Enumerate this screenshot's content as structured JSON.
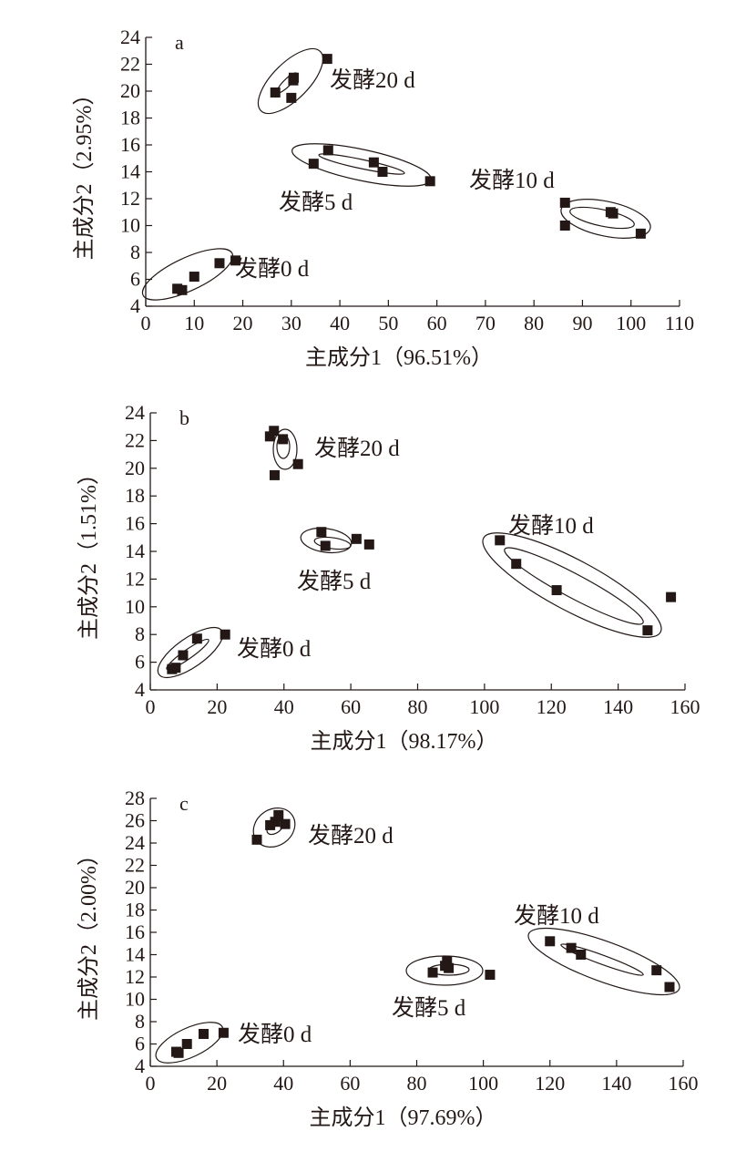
{
  "chart_data": [
    {
      "type": "scatter",
      "panel_label": "a",
      "xlabel": "主成分1（96.51%）",
      "ylabel": "主成分2（2.95%）",
      "xlim": [
        0,
        110
      ],
      "ylim": [
        4,
        24
      ],
      "xticks": [
        0,
        10,
        20,
        30,
        40,
        50,
        60,
        70,
        80,
        90,
        100,
        110
      ],
      "yticks": [
        4,
        6,
        8,
        10,
        12,
        14,
        16,
        18,
        20,
        22,
        24
      ],
      "groups": [
        {
          "name": "发酵0 d",
          "points": [
            [
              6.5,
              5.3
            ],
            [
              7.5,
              5.2
            ],
            [
              10.0,
              6.2
            ],
            [
              15.2,
              7.2
            ],
            [
              18.5,
              7.4
            ]
          ]
        },
        {
          "name": "发酵5 d",
          "points": [
            [
              34.6,
              14.6
            ],
            [
              37.6,
              15.6
            ],
            [
              47.0,
              14.7
            ],
            [
              48.8,
              14.0
            ],
            [
              58.6,
              13.3
            ]
          ]
        },
        {
          "name": "发酵10 d",
          "points": [
            [
              86.4,
              11.7
            ],
            [
              86.4,
              10.0
            ],
            [
              95.8,
              11.0
            ],
            [
              96.3,
              10.9
            ],
            [
              102.0,
              9.4
            ]
          ]
        },
        {
          "name": "发酵20 d",
          "points": [
            [
              26.7,
              19.9
            ],
            [
              30.0,
              19.5
            ],
            [
              30.4,
              20.8
            ],
            [
              30.5,
              21.0
            ],
            [
              37.4,
              22.4
            ]
          ]
        }
      ]
    },
    {
      "type": "scatter",
      "panel_label": "b",
      "xlabel": "主成分1（98.17%）",
      "ylabel": "主成分2（1.51%）",
      "xlim": [
        0,
        160
      ],
      "ylim": [
        4,
        24
      ],
      "xticks": [
        0,
        20,
        40,
        60,
        80,
        100,
        120,
        140,
        160
      ],
      "yticks": [
        4,
        6,
        8,
        10,
        12,
        14,
        16,
        18,
        20,
        22,
        24
      ],
      "groups": [
        {
          "name": "发酵0 d",
          "points": [
            [
              6.5,
              5.5
            ],
            [
              7.6,
              5.6
            ],
            [
              9.8,
              6.5
            ],
            [
              14.0,
              7.7
            ],
            [
              22.4,
              8.0
            ]
          ]
        },
        {
          "name": "发酵5 d",
          "points": [
            [
              51.2,
              15.4
            ],
            [
              52.4,
              14.4
            ],
            [
              61.7,
              14.9
            ],
            [
              65.5,
              14.5
            ]
          ]
        },
        {
          "name": "发酵10 d",
          "points": [
            [
              104.6,
              14.8
            ],
            [
              109.5,
              13.1
            ],
            [
              121.6,
              11.2
            ],
            [
              148.8,
              8.3
            ],
            [
              155.8,
              10.7
            ]
          ]
        },
        {
          "name": "发酵20 d",
          "points": [
            [
              35.8,
              22.3
            ],
            [
              37.0,
              22.7
            ],
            [
              39.7,
              22.1
            ],
            [
              37.2,
              19.5
            ],
            [
              44.2,
              20.3
            ]
          ]
        }
      ]
    },
    {
      "type": "scatter",
      "panel_label": "c",
      "xlabel": "主成分1（97.69%）",
      "ylabel": "主成分2（2.00%）",
      "xlim": [
        0,
        160
      ],
      "ylim": [
        4,
        28
      ],
      "xticks": [
        0,
        20,
        40,
        60,
        80,
        100,
        120,
        140,
        160
      ],
      "yticks": [
        4,
        6,
        8,
        10,
        12,
        14,
        16,
        18,
        20,
        22,
        24,
        26,
        28
      ],
      "groups": [
        {
          "name": "发酵0 d",
          "points": [
            [
              7.8,
              5.3
            ],
            [
              8.5,
              5.2
            ],
            [
              11.0,
              6.0
            ],
            [
              16.0,
              6.9
            ],
            [
              22.0,
              7.0
            ]
          ]
        },
        {
          "name": "发酵5 d",
          "points": [
            [
              84.8,
              12.4
            ],
            [
              88.5,
              13.0
            ],
            [
              89.1,
              13.4
            ],
            [
              89.6,
              12.8
            ],
            [
              102.0,
              12.2
            ]
          ]
        },
        {
          "name": "发酵10 d",
          "points": [
            [
              120.0,
              15.2
            ],
            [
              126.4,
              14.6
            ],
            [
              129.3,
              14.0
            ],
            [
              152.0,
              12.6
            ],
            [
              155.9,
              11.1
            ]
          ]
        },
        {
          "name": "发酵20 d",
          "points": [
            [
              32.0,
              24.3
            ],
            [
              36.0,
              25.6
            ],
            [
              37.5,
              25.9
            ],
            [
              38.5,
              26.5
            ],
            [
              40.5,
              25.7
            ]
          ]
        }
      ]
    }
  ]
}
